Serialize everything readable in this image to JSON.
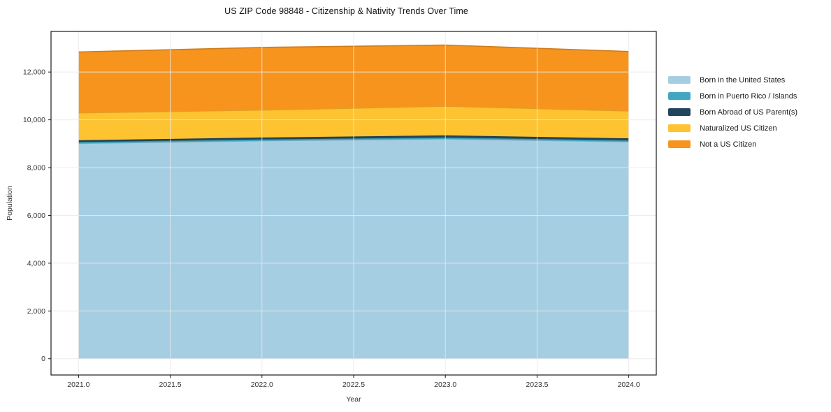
{
  "chart_data": {
    "type": "area",
    "stacked": true,
    "title": "US ZIP Code 98848 - Citizenship & Nativity Trends Over Time",
    "xlabel": "Year",
    "ylabel": "Population",
    "x": [
      2021,
      2022,
      2023,
      2024
    ],
    "series": [
      {
        "name": "Born in the United States",
        "color": "#a6cee3",
        "values": [
          9010,
          9120,
          9200,
          9080
        ]
      },
      {
        "name": "Born in Puerto Rico / Islands",
        "color": "#41a7c0",
        "values": [
          60,
          60,
          60,
          60
        ]
      },
      {
        "name": "Born Abroad of US Parent(s)",
        "color": "#21455a",
        "values": [
          75,
          80,
          90,
          85
        ]
      },
      {
        "name": "Naturalized US Citizen",
        "color": "#fdc330",
        "values": [
          1145,
          1150,
          1220,
          1145
        ]
      },
      {
        "name": "Not a US Citizen",
        "color": "#f7941e",
        "values": [
          2550,
          2620,
          2560,
          2490
        ]
      }
    ],
    "stack_totals": [
      12840,
      13030,
      13130,
      12860
    ],
    "xlim": [
      2020.85,
      2024.15
    ],
    "ylim": [
      -680,
      13700
    ],
    "xticks": [
      2021.0,
      2021.5,
      2022.0,
      2022.5,
      2023.0,
      2023.5,
      2024.0
    ],
    "xtick_labels": [
      "2021.0",
      "2021.5",
      "2022.0",
      "2022.5",
      "2023.0",
      "2023.5",
      "2024.0"
    ],
    "yticks": [
      0,
      2000,
      4000,
      6000,
      8000,
      10000,
      12000
    ],
    "ytick_labels": [
      "0",
      "2,000",
      "4,000",
      "6,000",
      "8,000",
      "10,000",
      "12,000"
    ],
    "grid": true,
    "legend_position": "right-outside",
    "spine_color": "#1a1a1a",
    "grid_color": "#e9e9e9",
    "tick_label_color": "#333333"
  }
}
